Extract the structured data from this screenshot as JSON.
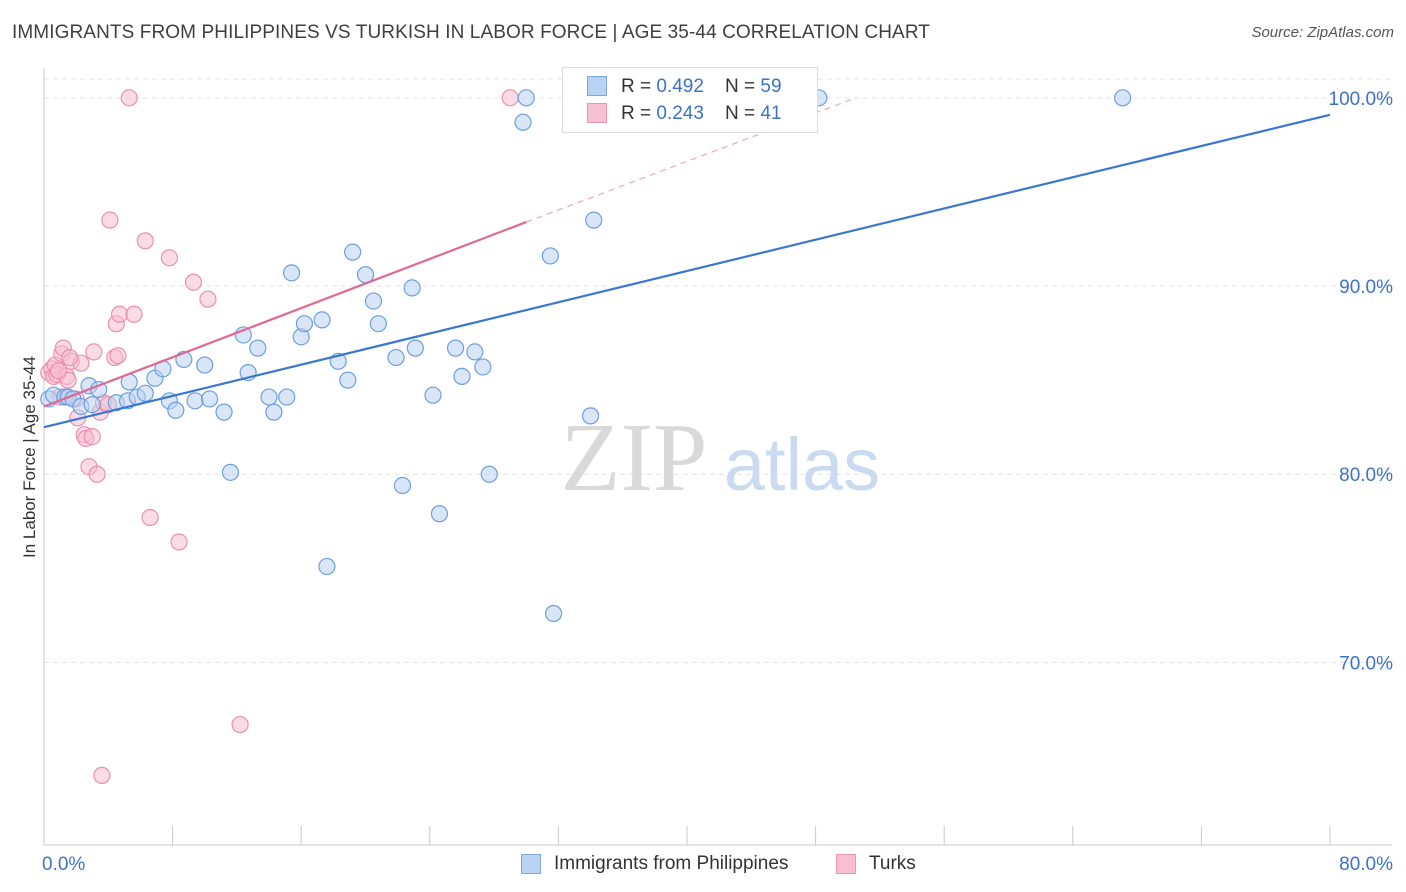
{
  "title": "IMMIGRANTS FROM PHILIPPINES VS TURKISH IN LABOR FORCE | AGE 35-44 CORRELATION CHART",
  "source": "Source: ZipAtlas.com",
  "watermark": {
    "zip": "ZIP",
    "atlas": "atlas"
  },
  "legend": {
    "blue": {
      "r_label": "R = ",
      "r_value": "0.492",
      "n_label": "N = ",
      "n_value": "59"
    },
    "pink": {
      "r_label": "R = ",
      "r_value": "0.243",
      "n_label": "N = ",
      "n_value": "41"
    }
  },
  "colors": {
    "blue": "#3a78d0",
    "blue_fill": "#b9d2f3",
    "pink": "#e06892",
    "pink_fill": "#f7bfd1",
    "axis_text": "#3b73c9",
    "grid": "#e3e3e3"
  },
  "chart_data": {
    "type": "scatter",
    "title": "IMMIGRANTS FROM PHILIPPINES VS TURKISH IN LABOR FORCE | AGE 35-44 CORRELATION CHART",
    "xlabel": "",
    "ylabel": "In Labor Force | Age 35-44",
    "xlim": [
      0,
      80
    ],
    "ylim": [
      60.3,
      101
    ],
    "x_tick_labels": [
      "0.0%",
      "80.0%"
    ],
    "y_ticks": [
      70,
      80,
      90,
      100
    ],
    "y_tick_labels": [
      "70.0%",
      "80.0%",
      "90.0%",
      "100.0%"
    ],
    "legend_position": "top-center",
    "series": [
      {
        "name": "Immigrants from Philippines",
        "color": "blue",
        "points": [
          [
            0.3,
            84.0
          ],
          [
            0.6,
            84.2
          ],
          [
            1.3,
            84.1
          ],
          [
            1.5,
            84.1
          ],
          [
            1.8,
            84.0
          ],
          [
            2.3,
            83.6
          ],
          [
            2.8,
            84.7
          ],
          [
            3.0,
            83.7
          ],
          [
            3.4,
            84.5
          ],
          [
            4.5,
            83.8
          ],
          [
            5.2,
            83.9
          ],
          [
            5.3,
            84.9
          ],
          [
            5.8,
            84.1
          ],
          [
            6.3,
            84.3
          ],
          [
            6.9,
            85.1
          ],
          [
            7.4,
            85.6
          ],
          [
            7.8,
            83.9
          ],
          [
            8.2,
            83.4
          ],
          [
            8.7,
            86.1
          ],
          [
            9.4,
            83.9
          ],
          [
            10.0,
            85.8
          ],
          [
            10.3,
            84.0
          ],
          [
            11.2,
            83.3
          ],
          [
            11.6,
            80.1
          ],
          [
            12.4,
            87.4
          ],
          [
            12.7,
            85.4
          ],
          [
            13.3,
            86.7
          ],
          [
            14.0,
            84.1
          ],
          [
            14.3,
            83.3
          ],
          [
            15.1,
            84.1
          ],
          [
            15.4,
            90.7
          ],
          [
            16.0,
            87.3
          ],
          [
            16.2,
            88.0
          ],
          [
            17.3,
            88.2
          ],
          [
            17.6,
            75.1
          ],
          [
            18.3,
            86.0
          ],
          [
            18.9,
            85.0
          ],
          [
            19.2,
            91.8
          ],
          [
            20.0,
            90.6
          ],
          [
            20.5,
            89.2
          ],
          [
            20.8,
            88.0
          ],
          [
            21.9,
            86.2
          ],
          [
            22.3,
            79.4
          ],
          [
            22.9,
            89.9
          ],
          [
            23.1,
            86.7
          ],
          [
            24.2,
            84.2
          ],
          [
            24.6,
            77.9
          ],
          [
            25.6,
            86.7
          ],
          [
            26.0,
            85.2
          ],
          [
            26.8,
            86.5
          ],
          [
            27.3,
            85.7
          ],
          [
            27.7,
            80.0
          ],
          [
            29.8,
            98.7
          ],
          [
            30.0,
            100.0
          ],
          [
            31.5,
            91.6
          ],
          [
            31.7,
            72.6
          ],
          [
            34.0,
            83.1
          ],
          [
            34.2,
            93.5
          ],
          [
            48.2,
            100.0
          ],
          [
            67.1,
            100.0
          ]
        ],
        "trend": {
          "x": [
            0,
            80
          ],
          "y": [
            82.5,
            99.1
          ],
          "style": "solid"
        }
      },
      {
        "name": "Turks",
        "color": "pink",
        "points": [
          [
            0.3,
            85.4
          ],
          [
            0.5,
            85.6
          ],
          [
            0.6,
            85.2
          ],
          [
            0.7,
            85.8
          ],
          [
            0.8,
            85.3
          ],
          [
            1.0,
            84.1
          ],
          [
            1.1,
            86.4
          ],
          [
            1.2,
            86.7
          ],
          [
            1.4,
            85.2
          ],
          [
            1.5,
            85.0
          ],
          [
            1.7,
            86.0
          ],
          [
            2.0,
            84.0
          ],
          [
            2.1,
            83.0
          ],
          [
            2.3,
            85.9
          ],
          [
            2.5,
            82.1
          ],
          [
            2.6,
            81.9
          ],
          [
            2.8,
            80.4
          ],
          [
            3.0,
            82.0
          ],
          [
            3.1,
            86.5
          ],
          [
            3.3,
            80.0
          ],
          [
            3.5,
            83.3
          ],
          [
            3.7,
            83.8
          ],
          [
            4.0,
            83.7
          ],
          [
            4.1,
            93.5
          ],
          [
            4.4,
            86.2
          ],
          [
            4.5,
            88.0
          ],
          [
            4.6,
            86.3
          ],
          [
            4.7,
            88.5
          ],
          [
            5.3,
            100.0
          ],
          [
            5.6,
            88.5
          ],
          [
            6.3,
            92.4
          ],
          [
            6.6,
            77.7
          ],
          [
            7.8,
            91.5
          ],
          [
            8.4,
            76.4
          ],
          [
            9.3,
            90.2
          ],
          [
            10.2,
            89.3
          ],
          [
            12.2,
            66.7
          ],
          [
            3.6,
            64.0
          ],
          [
            29.0,
            100.0
          ],
          [
            1.6,
            86.2
          ],
          [
            0.9,
            85.5
          ]
        ],
        "trend": {
          "x": [
            0,
            30
          ],
          "y": [
            83.6,
            93.4
          ],
          "style": "solid",
          "extension": {
            "x": [
              30,
              50.5
            ],
            "y": [
              93.4,
              100.0
            ],
            "style": "dashed"
          }
        }
      }
    ]
  },
  "bottom_legend": {
    "blue_label": "Immigrants from Philippines",
    "pink_label": "Turks"
  }
}
